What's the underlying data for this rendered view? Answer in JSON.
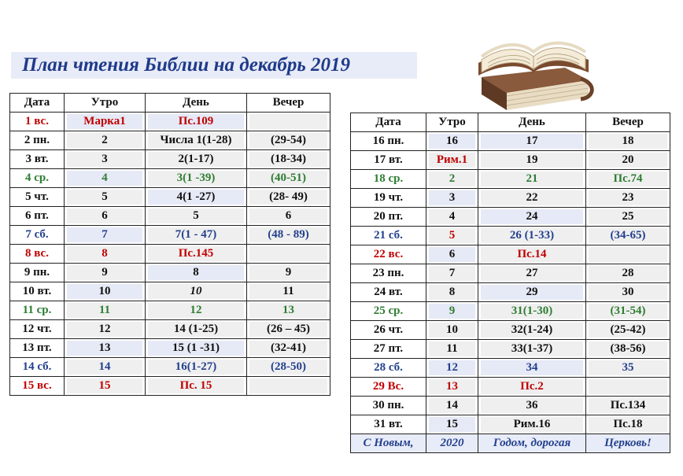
{
  "title": "План чтения Библии на декабрь 2019",
  "headers": [
    "Дата",
    "Утро",
    "День",
    "Вечер"
  ],
  "colors": {
    "red": "#c00000",
    "green": "#2e7d32",
    "blue": "#23408e",
    "black": "#111111"
  },
  "left_rows": [
    {
      "date": "1 вс.",
      "morning": "Марка1",
      "day": "Пс.109",
      "evening": "",
      "color": "red"
    },
    {
      "date": "2 пн.",
      "morning": "2",
      "day": "Числа 1(1-28)",
      "evening": "(29-54)",
      "color": "black"
    },
    {
      "date": "3 вт.",
      "morning": "3",
      "day": "2(1-17)",
      "evening": "(18-34)",
      "color": "black"
    },
    {
      "date": "4 ср.",
      "morning": "4",
      "day": "3(1 -39)",
      "evening": "(40-51)",
      "color": "green"
    },
    {
      "date": "5 чт.",
      "morning": "5",
      "day": "4(1 -27)",
      "evening": "(28- 49)",
      "color": "black"
    },
    {
      "date": "6 пт.",
      "morning": "6",
      "day": "5",
      "evening": "6",
      "color": "black"
    },
    {
      "date": "7 сб.",
      "morning": "7",
      "day": "7(1 - 47)",
      "evening": "(48 - 89)",
      "color": "blue"
    },
    {
      "date": "8 вс.",
      "morning": "8",
      "day": "Пс.145",
      "evening": "",
      "color": "red"
    },
    {
      "date": "9 пн.",
      "morning": "9",
      "day": "8",
      "evening": "9",
      "color": "black"
    },
    {
      "date": "10 вт.",
      "morning": "10",
      "day": "10",
      "evening": "11",
      "color": "black",
      "day_italic": true
    },
    {
      "date": "11 ср.",
      "morning": "11",
      "day": "12",
      "evening": "13",
      "color": "green"
    },
    {
      "date": "12 чт.",
      "morning": "12",
      "day": "14 (1-25)",
      "evening": "(26 – 45)",
      "color": "black"
    },
    {
      "date": "13 пт.",
      "morning": "13",
      "day": "15 (1 -31)",
      "evening": "(32-41)",
      "color": "black"
    },
    {
      "date": "14 сб.",
      "morning": "14",
      "day": "16(1-27)",
      "evening": "(28-50)",
      "color": "blue"
    },
    {
      "date": "15 вс.",
      "morning": "15",
      "day": "Пс. 15",
      "evening": "",
      "color": "red"
    }
  ],
  "right_rows": [
    {
      "date": "16 пн.",
      "morning": "16",
      "day": "17",
      "evening": "18",
      "color": "black"
    },
    {
      "date": "17 вт.",
      "morning": "Рим.1",
      "day": "19",
      "evening": "20",
      "color": "black",
      "morning_color": "red"
    },
    {
      "date": "18 ср.",
      "morning": "2",
      "day": "21",
      "evening": "Пс.74",
      "color": "green"
    },
    {
      "date": "19 чт.",
      "morning": "3",
      "day": "22",
      "evening": "23",
      "color": "black"
    },
    {
      "date": "20 пт.",
      "morning": "4",
      "day": "24",
      "evening": "25",
      "color": "black"
    },
    {
      "date": "21 сб.",
      "morning": "5",
      "day": "26 (1-33)",
      "evening": "(34-65)",
      "color": "blue",
      "morning_color": "red"
    },
    {
      "date": "22 вс.",
      "morning": "6",
      "day": "Пс.14",
      "evening": "",
      "color": "red",
      "morning_color": "black"
    },
    {
      "date": "23 пн.",
      "morning": "7",
      "day": "27",
      "evening": "28",
      "color": "black"
    },
    {
      "date": "24 вт.",
      "morning": "8",
      "day": "29",
      "evening": "30",
      "color": "black"
    },
    {
      "date": "25 ср.",
      "morning": "9",
      "day": "31(1-30)",
      "evening": "(31-54)",
      "color": "green"
    },
    {
      "date": "26 чт.",
      "morning": "10",
      "day": "32(1-24)",
      "evening": "(25-42)",
      "color": "black"
    },
    {
      "date": "27 пт.",
      "morning": "11",
      "day": "33(1-37)",
      "evening": "(38-56)",
      "color": "black"
    },
    {
      "date": "28 сб.",
      "morning": "12",
      "day": "34",
      "evening": "35",
      "color": "blue"
    },
    {
      "date": "29 Вс.",
      "morning": "13",
      "day": "Пс.2",
      "evening": "",
      "color": "red"
    },
    {
      "date": "30 пн.",
      "morning": "14",
      "day": "36",
      "evening": "Пс.134",
      "color": "black"
    },
    {
      "date": "31 вт.",
      "morning": "15",
      "day": "Рим.16",
      "evening": "Пс.18",
      "color": "black"
    }
  ],
  "footer": [
    "С Новым,",
    "2020",
    "Годом, дорогая",
    "Церковь!"
  ]
}
